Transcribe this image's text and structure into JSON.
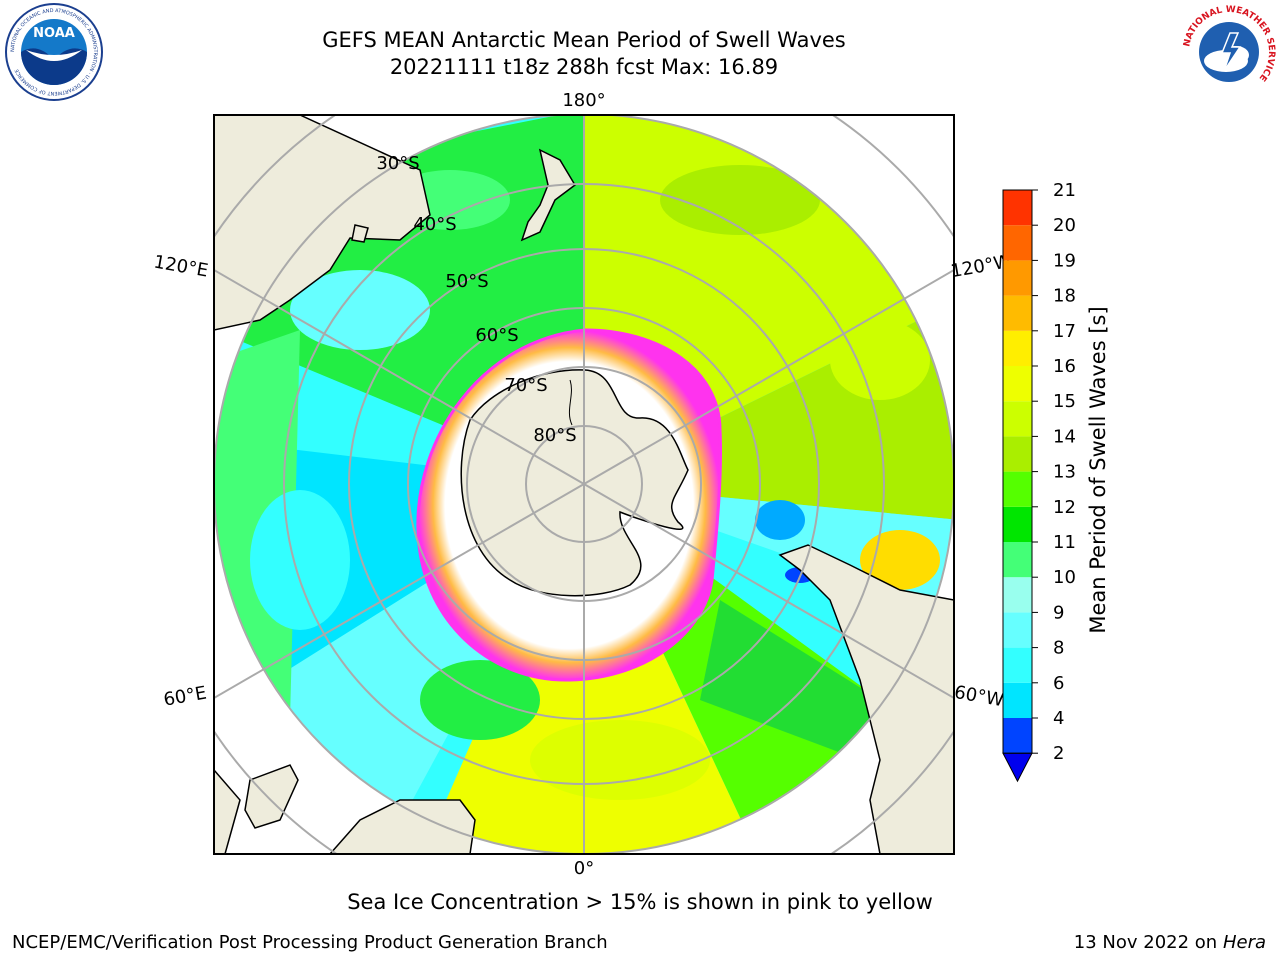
{
  "header": {
    "title_line1": "GEFS MEAN Antarctic Mean Period of Swell Waves",
    "title_line2": "20221111 t18z 288h fcst   Max: 16.89"
  },
  "map": {
    "projection": "south polar stereographic",
    "longitude_labels": {
      "top": "180°",
      "bottom": "0°",
      "upper_left": "120°E",
      "lower_left": "60°E",
      "upper_right": "120°W",
      "lower_right": "60°W"
    },
    "latitude_labels": [
      "30°S",
      "40°S",
      "50°S",
      "60°S",
      "70°S",
      "80°S"
    ],
    "land_color": "#eeecdc",
    "ice_colors": [
      "#ff33ff",
      "#ffaa33"
    ]
  },
  "colorbar": {
    "label": "Mean Period of Swell Waves [s]",
    "ticks": [
      "2",
      "4",
      "6",
      "8",
      "9",
      "10",
      "11",
      "12",
      "13",
      "14",
      "15",
      "16",
      "17",
      "18",
      "19",
      "20",
      "21"
    ],
    "colors": [
      "#0044ff",
      "#00e5ff",
      "#33ffff",
      "#66ffff",
      "#99ffee",
      "#44ff77",
      "#00e600",
      "#55ff00",
      "#aaee00",
      "#ccff00",
      "#eeff00",
      "#ffee00",
      "#ffbb00",
      "#ff9900",
      "#ff6600",
      "#ff3300"
    ],
    "under_color": "#0000ee"
  },
  "footer": {
    "note": "Sea Ice Concentration > 15% is shown in pink to yellow",
    "credit_left": "NCEP/EMC/Verification Post Processing Product Generation Branch",
    "date": "13 Nov 2022 on",
    "machine": "Hera"
  },
  "logos": {
    "noaa": {
      "text": "NOAA",
      "ring_text": "NATIONAL OCEANIC AND ATMOSPHERIC ADMINISTRATION · U.S. DEPARTMENT OF COMMERCE"
    },
    "nws": {
      "ring_text": "NATIONAL WEATHER SERVICE"
    }
  }
}
